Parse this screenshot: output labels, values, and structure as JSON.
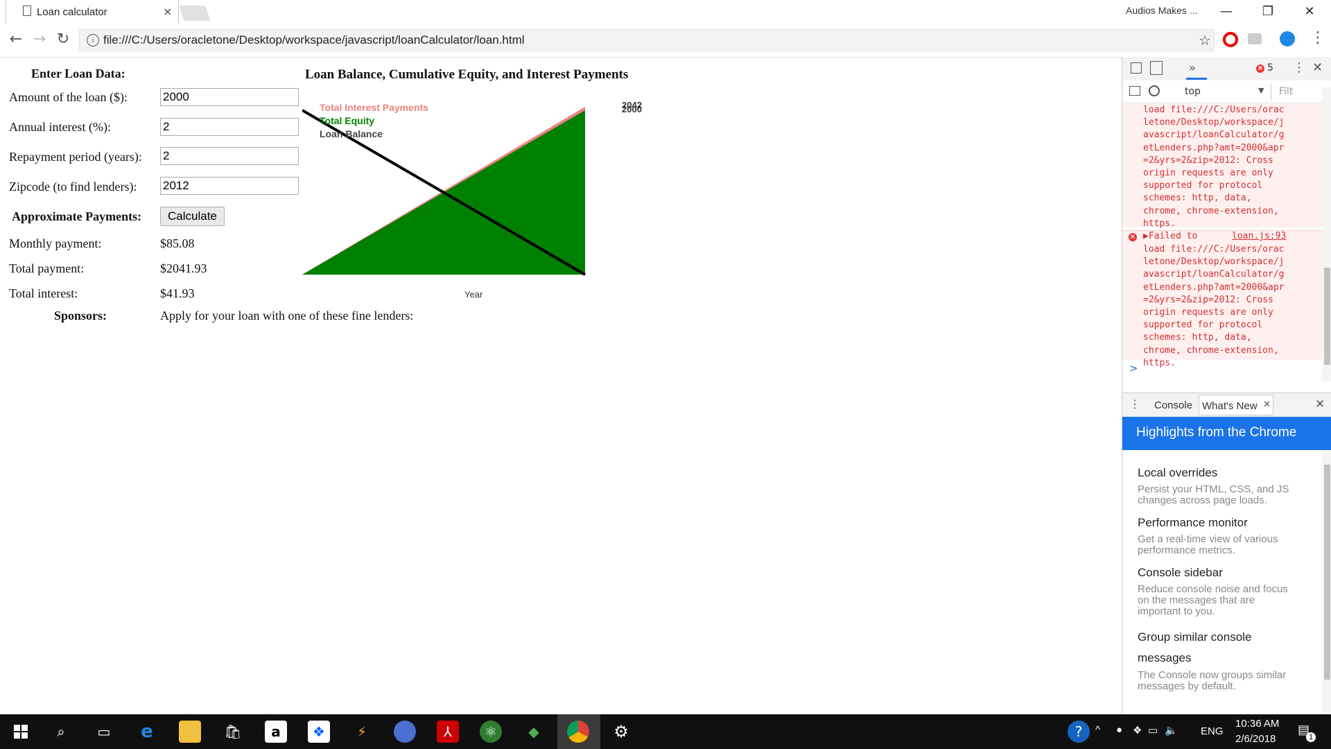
{
  "browser": {
    "tab_title": "Loan calculator",
    "tab_close": "×",
    "window_user": "Audios Makes ...",
    "min": "—",
    "restore": "❐",
    "close": "✕",
    "url": "file:///C:/Users/oracletone/Desktop/workspace/javascript/loanCalculator/loan.html"
  },
  "form": {
    "heading": "Enter Loan Data:",
    "amount_label": "Amount of the loan ($):",
    "amount_value": "2000",
    "interest_label": "Annual interest (%):",
    "interest_value": "2",
    "period_label": "Repayment period (years):",
    "period_value": "2",
    "zip_label": "Zipcode (to find lenders):",
    "zip_value": "2012",
    "approx_label": "Approximate Payments:",
    "calculate": "Calculate",
    "monthly_label": "Monthly payment:",
    "monthly_value": "$85.08",
    "total_label": "Total payment:",
    "total_value": "$2041.93",
    "interest_total_label": "Total interest:",
    "interest_total_value": "$41.93",
    "sponsors_label": "Sponsors:",
    "sponsors_text": "Apply for your loan with one of these fine lenders:"
  },
  "chart_data": {
    "type": "area",
    "title": "Loan Balance, Cumulative Equity, and Interest Payments",
    "xlabel": "Year",
    "x": [
      0,
      24
    ],
    "series": [
      {
        "name": "Total Interest Payments",
        "color": "#f08080",
        "values": [
          0,
          41.93
        ]
      },
      {
        "name": "Total Equity",
        "color": "#008000",
        "values": [
          0,
          2000
        ]
      },
      {
        "name": "Loan Balance",
        "color": "#000000",
        "values": [
          2000,
          0
        ]
      }
    ],
    "ylim": [
      0,
      2041.93
    ],
    "tick_labels": [
      "2042",
      "2000"
    ]
  },
  "devtools": {
    "error_count": "5",
    "context": "top",
    "filter": "Filt",
    "msg1": "load file:///C:/Users/orac\nletone/Desktop/workspace/j\navascript/loanCalculator/g\netLenders.php?amt=2000&apr\n=2&yrs=2&zip=2012: Cross\norigin requests are only\nsupported for protocol\nschemes: http, data,\nchrome, chrome-extension,\nhttps.",
    "msg2_head": "▶Failed to",
    "msg2_source": "loan.js:93",
    "msg2": "load file:///C:/Users/orac\nletone/Desktop/workspace/j\navascript/loanCalculator/g\netLenders.php?amt=2000&apr\n=2&yrs=2&zip=2012: Cross\norigin requests are only\nsupported for protocol\nschemes: http, data,\nchrome, chrome-extension,\nhttps.",
    "prompt": ">",
    "drawer_tabs": [
      "Console",
      "What's New"
    ],
    "banner": "Highlights from the Chrome",
    "highlights": [
      {
        "title": "Local overrides",
        "desc": "Persist your HTML, CSS, and JS changes across page loads."
      },
      {
        "title": "Performance monitor",
        "desc": "Get a real-time view of various performance metrics."
      },
      {
        "title": "Console sidebar",
        "desc": "Reduce console noise and focus on the messages that are important to you."
      },
      {
        "title": "Group similar console messages",
        "desc": "The Console now groups similar messages by default."
      }
    ]
  },
  "taskbar": {
    "time": "10:36 AM",
    "date": "2/6/2018",
    "lang": "ENG",
    "notif_count": "1"
  }
}
